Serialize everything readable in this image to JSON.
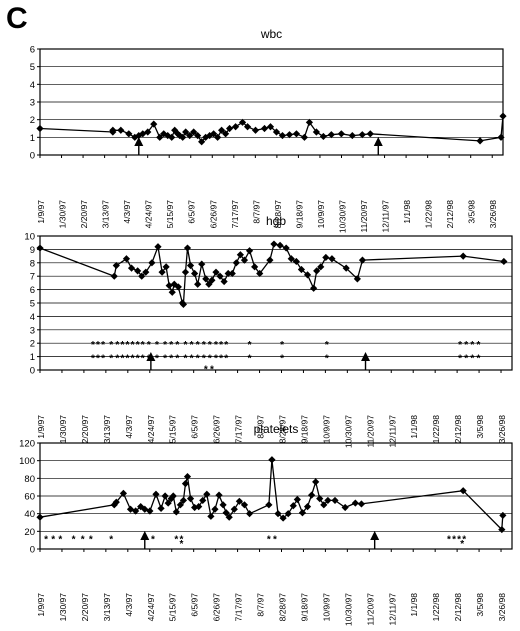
{
  "panel_label": "C",
  "colors": {
    "line": "#000000",
    "grid": "#000000",
    "plot_bg": "#ffffff"
  },
  "chart_data": [
    {
      "type": "line",
      "title": "wbc",
      "ylim": [
        0,
        6
      ],
      "yticks": [
        0,
        1,
        2,
        3,
        4,
        5,
        6
      ],
      "grid": true,
      "x_tick_labels": [
        "1/9/97",
        "1/30/97",
        "2/20/97",
        "3/13/97",
        "4/3/97",
        "4/24/97",
        "5/15/97",
        "6/5/97",
        "6/26/97",
        "7/17/97",
        "8/7/97",
        "8/28/97",
        "9/18/97",
        "10/9/97",
        "10/30/97",
        "11/20/97",
        "12/11/97",
        "1/1/98",
        "1/22/98",
        "2/12/98",
        "3/5/98",
        "3/26/98"
      ],
      "series": [
        {
          "points": [
            [
              0,
              1.5
            ],
            [
              7.3,
              1.3
            ],
            [
              7.3,
              1.4
            ],
            [
              8.1,
              1.4
            ],
            [
              8.9,
              1.2
            ],
            [
              9.5,
              1.0
            ],
            [
              9.9,
              1.1
            ],
            [
              10.3,
              1.2
            ],
            [
              10.8,
              1.3
            ],
            [
              11.4,
              1.75
            ],
            [
              12.0,
              1.0
            ],
            [
              12.4,
              1.2
            ],
            [
              12.8,
              1.1
            ],
            [
              13.2,
              1.0
            ],
            [
              13.5,
              1.4
            ],
            [
              13.8,
              1.2
            ],
            [
              14.0,
              1.1
            ],
            [
              14.3,
              1.0
            ],
            [
              14.6,
              1.3
            ],
            [
              15.0,
              1.1
            ],
            [
              15.4,
              1.3
            ],
            [
              15.8,
              1.1
            ],
            [
              16.2,
              0.75
            ],
            [
              16.6,
              1.0
            ],
            [
              17.0,
              1.1
            ],
            [
              17.4,
              1.2
            ],
            [
              17.8,
              1.0
            ],
            [
              18.2,
              1.4
            ],
            [
              18.6,
              1.2
            ],
            [
              19.0,
              1.5
            ],
            [
              19.6,
              1.6
            ],
            [
              20.3,
              1.85
            ],
            [
              20.8,
              1.6
            ],
            [
              21.6,
              1.4
            ],
            [
              22.5,
              1.5
            ],
            [
              23.1,
              1.6
            ],
            [
              23.7,
              1.3
            ],
            [
              24.3,
              1.1
            ],
            [
              25.0,
              1.15
            ],
            [
              25.7,
              1.2
            ],
            [
              26.5,
              1.0
            ],
            [
              27.0,
              1.85
            ],
            [
              27.7,
              1.3
            ],
            [
              28.4,
              1.05
            ],
            [
              29.2,
              1.15
            ],
            [
              30.2,
              1.2
            ],
            [
              31.3,
              1.1
            ],
            [
              32.3,
              1.15
            ],
            [
              33.1,
              1.2
            ],
            [
              44.1,
              0.8
            ],
            [
              46.2,
              1.0
            ],
            [
              46.4,
              2.2
            ]
          ]
        }
      ],
      "annotations": [
        {
          "kind": "arrow",
          "x": 9.9
        },
        {
          "kind": "arrow",
          "x": 33.9
        }
      ]
    },
    {
      "type": "line",
      "title": "hgb",
      "ylim": [
        0,
        10
      ],
      "yticks": [
        0,
        1,
        2,
        3,
        4,
        5,
        6,
        7,
        8,
        9,
        10
      ],
      "grid": true,
      "x_tick_labels": [
        "1/9/97",
        "1/30/97",
        "2/20/97",
        "3/13/97",
        "4/3/97",
        "4/24/97",
        "5/15/97",
        "6/5/97",
        "6/26/97",
        "7/17/97",
        "8/7/97",
        "8/28/97",
        "9/18/97",
        "10/9/97",
        "10/30/97",
        "11/20/97",
        "12/11/97",
        "1/1/98",
        "1/22/98",
        "2/12/98",
        "3/5/98",
        "3/26/98"
      ],
      "series": [
        {
          "points": [
            [
              0,
              9.1
            ],
            [
              7.3,
              7.0
            ],
            [
              7.5,
              7.8
            ],
            [
              8.5,
              8.3
            ],
            [
              9.0,
              7.6
            ],
            [
              9.6,
              7.4
            ],
            [
              10.0,
              7.0
            ],
            [
              10.4,
              7.3
            ],
            [
              11.0,
              8.0
            ],
            [
              11.6,
              9.2
            ],
            [
              12.0,
              7.3
            ],
            [
              12.4,
              7.7
            ],
            [
              12.7,
              6.3
            ],
            [
              13.0,
              5.8
            ],
            [
              13.2,
              6.4
            ],
            [
              13.6,
              6.2
            ],
            [
              14.0,
              5.0
            ],
            [
              14.1,
              4.9
            ],
            [
              14.3,
              7.3
            ],
            [
              14.5,
              9.1
            ],
            [
              14.8,
              7.8
            ],
            [
              15.2,
              7.2
            ],
            [
              15.5,
              6.4
            ],
            [
              15.9,
              7.9
            ],
            [
              16.3,
              6.8
            ],
            [
              16.6,
              6.4
            ],
            [
              16.9,
              6.7
            ],
            [
              17.3,
              7.3
            ],
            [
              17.7,
              7.0
            ],
            [
              18.1,
              6.6
            ],
            [
              18.5,
              7.2
            ],
            [
              18.9,
              7.2
            ],
            [
              19.3,
              8.0
            ],
            [
              19.7,
              8.6
            ],
            [
              20.1,
              8.2
            ],
            [
              20.6,
              8.9
            ],
            [
              21.1,
              7.7
            ],
            [
              21.6,
              7.2
            ],
            [
              22.6,
              8.2
            ],
            [
              23.0,
              9.4
            ],
            [
              23.6,
              9.3
            ],
            [
              24.2,
              9.1
            ],
            [
              24.7,
              8.3
            ],
            [
              25.2,
              8.1
            ],
            [
              25.7,
              7.5
            ],
            [
              26.3,
              7.1
            ],
            [
              26.9,
              6.1
            ],
            [
              27.2,
              7.4
            ],
            [
              27.6,
              7.7
            ],
            [
              28.1,
              8.4
            ],
            [
              28.7,
              8.3
            ],
            [
              30.1,
              7.6
            ],
            [
              31.2,
              6.8
            ],
            [
              31.7,
              8.2
            ],
            [
              41.6,
              8.5
            ],
            [
              45.6,
              8.1
            ]
          ]
        }
      ],
      "star_rows": [
        {
          "y": 2,
          "x": [
            5.2,
            5.7,
            6.2,
            7.0,
            7.6,
            8.1,
            8.6,
            9.1,
            9.6,
            10.1,
            10.7,
            11.5,
            12.3,
            12.9,
            13.5,
            14.3,
            14.9,
            15.5,
            16.1,
            16.7,
            17.3,
            17.8,
            18.3,
            20.6,
            23.8,
            28.2,
            41.3,
            41.9,
            42.5,
            43.1
          ]
        },
        {
          "y": 1,
          "x": [
            5.2,
            5.7,
            6.2,
            7.0,
            7.6,
            8.1,
            8.6,
            9.1,
            9.6,
            10.1,
            10.7,
            11.5,
            12.3,
            12.9,
            13.5,
            14.3,
            14.9,
            15.5,
            16.1,
            16.7,
            17.3,
            17.8,
            18.3,
            20.6,
            23.8,
            28.2,
            41.3,
            41.9,
            42.5,
            43.1
          ]
        },
        {
          "y": 0.2,
          "x": [
            16.3,
            16.9
          ]
        }
      ],
      "annotations": [
        {
          "kind": "arrow",
          "x": 10.9
        },
        {
          "kind": "arrow",
          "x": 32.0
        }
      ]
    },
    {
      "type": "line",
      "title": "platelets",
      "ylim": [
        0,
        120
      ],
      "yticks": [
        0,
        20,
        40,
        60,
        80,
        100,
        120
      ],
      "grid": true,
      "x_tick_labels": [
        "1/9/97",
        "1/30/97",
        "2/20/97",
        "3/13/97",
        "4/3/97",
        "4/24/97",
        "5/15/97",
        "6/5/97",
        "6/26/97",
        "7/17/97",
        "8/7/97",
        "8/28/97",
        "9/18/97",
        "10/9/97",
        "10/30/97",
        "11/20/97",
        "12/11/97",
        "1/1/98",
        "1/22/98",
        "2/12/98",
        "3/5/98",
        "3/26/98"
      ],
      "series": [
        {
          "points": [
            [
              0,
              36
            ],
            [
              7.3,
              50
            ],
            [
              7.5,
              53
            ],
            [
              8.2,
              63
            ],
            [
              8.9,
              45
            ],
            [
              9.4,
              43
            ],
            [
              9.9,
              48
            ],
            [
              10.3,
              45
            ],
            [
              10.8,
              43
            ],
            [
              11.4,
              62
            ],
            [
              11.9,
              46
            ],
            [
              12.3,
              60
            ],
            [
              12.6,
              52
            ],
            [
              12.9,
              57
            ],
            [
              13.1,
              60
            ],
            [
              13.4,
              42
            ],
            [
              13.8,
              50
            ],
            [
              14.1,
              55
            ],
            [
              14.3,
              74
            ],
            [
              14.5,
              82
            ],
            [
              14.8,
              57
            ],
            [
              15.2,
              47
            ],
            [
              15.6,
              48
            ],
            [
              16.0,
              55
            ],
            [
              16.4,
              62
            ],
            [
              16.8,
              37
            ],
            [
              17.2,
              45
            ],
            [
              17.6,
              61
            ],
            [
              18.0,
              50
            ],
            [
              18.3,
              41
            ],
            [
              18.6,
              36
            ],
            [
              19.1,
              45
            ],
            [
              19.6,
              54
            ],
            [
              20.1,
              50
            ],
            [
              20.6,
              40
            ],
            [
              22.5,
              50
            ],
            [
              22.8,
              101
            ],
            [
              23.4,
              40
            ],
            [
              23.9,
              35
            ],
            [
              24.4,
              40
            ],
            [
              24.9,
              49
            ],
            [
              25.3,
              56
            ],
            [
              25.8,
              41
            ],
            [
              26.3,
              48
            ],
            [
              26.7,
              61
            ],
            [
              27.1,
              76
            ],
            [
              27.5,
              57
            ],
            [
              27.9,
              50
            ],
            [
              28.3,
              55
            ],
            [
              29.0,
              55
            ],
            [
              30.0,
              47
            ],
            [
              31.0,
              52
            ],
            [
              31.6,
              51
            ],
            [
              41.6,
              66
            ],
            [
              45.4,
              22
            ],
            [
              45.5,
              38
            ]
          ]
        }
      ],
      "star_rows": [
        {
          "y": 13,
          "x": [
            0.6,
            1.3,
            2.0,
            3.3,
            4.2,
            5.0,
            7.0,
            11.1,
            13.4,
            13.9,
            22.5,
            23.1,
            40.2,
            40.7,
            41.2,
            41.7
          ]
        },
        {
          "y": 8,
          "x": [
            13.9,
            41.5
          ]
        }
      ],
      "annotations": [
        {
          "kind": "arrow",
          "x": 10.3
        },
        {
          "kind": "arrow",
          "x": 32.9
        }
      ]
    }
  ]
}
